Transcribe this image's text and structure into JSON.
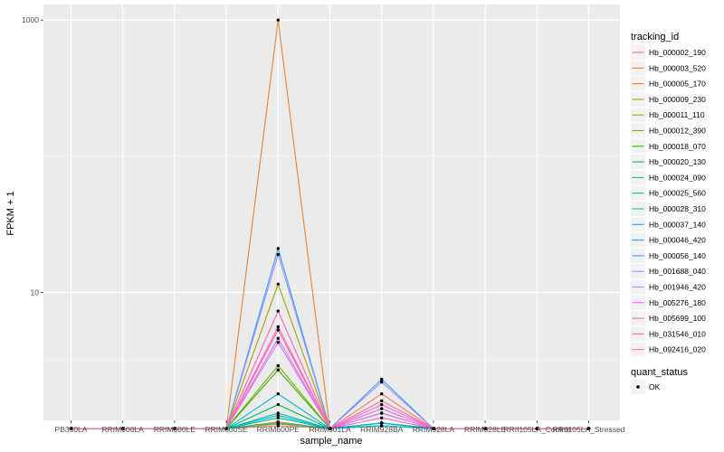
{
  "chart_data": {
    "type": "line",
    "xlabel": "sample_name",
    "ylabel": "FPKM + 1",
    "y_scale": "log10",
    "ylim": [
      1.15,
      1300
    ],
    "y_ticks": [
      10,
      1000
    ],
    "y_tick_labels": [
      "10",
      "1000"
    ],
    "categories": [
      "PB350LA",
      "RRIM600LA",
      "RRIM600LE",
      "RRIM600SE",
      "RRIM600PE",
      "RRIM901LA",
      "RRIM928BA",
      "RRIM928LA",
      "RRIM928LE",
      "RRII105LA_Control",
      "RRII105LA_Stressed"
    ],
    "legend_title": "tracking_id",
    "series": [
      {
        "name": "Hb_000002_190",
        "color": "#F8766D",
        "values": [
          1,
          1,
          1,
          1,
          1.05,
          1,
          1.8,
          1,
          1,
          1,
          1
        ]
      },
      {
        "name": "Hb_000003_520",
        "color": "#EA8331",
        "values": [
          1,
          1,
          1,
          1,
          1000,
          1,
          1.3,
          1,
          1,
          1,
          1
        ]
      },
      {
        "name": "Hb_000005_170",
        "color": "#D89000",
        "values": [
          1,
          1,
          1,
          1,
          1.08,
          1,
          1.1,
          1,
          1,
          1,
          1
        ]
      },
      {
        "name": "Hb_000009_230",
        "color": "#C09B00",
        "values": [
          1,
          1,
          1,
          1,
          1.12,
          1,
          1.05,
          1,
          1,
          1,
          1
        ]
      },
      {
        "name": "Hb_000011_110",
        "color": "#A3A500",
        "values": [
          1,
          1,
          1,
          1,
          11.5,
          1,
          1.1,
          1,
          1,
          1,
          1
        ]
      },
      {
        "name": "Hb_000012_390",
        "color": "#7CAE00",
        "values": [
          1,
          1,
          1,
          1,
          2.9,
          1,
          1.1,
          1,
          1,
          1,
          1
        ]
      },
      {
        "name": "Hb_000018_070",
        "color": "#39B600",
        "values": [
          1,
          1,
          1,
          1,
          2.7,
          1,
          1.05,
          1,
          1,
          1,
          1
        ]
      },
      {
        "name": "Hb_000020_130",
        "color": "#00BB4E",
        "values": [
          1,
          1,
          1,
          1,
          1.5,
          1,
          1.1,
          1,
          1,
          1,
          1
        ]
      },
      {
        "name": "Hb_000024_090",
        "color": "#00BF7D",
        "values": [
          1,
          1,
          1,
          1,
          1.2,
          1,
          1.05,
          1,
          1,
          1,
          1
        ]
      },
      {
        "name": "Hb_000025_560",
        "color": "#00C1A3",
        "values": [
          1,
          1,
          1,
          1,
          1.3,
          1,
          1.1,
          1,
          1,
          1,
          1
        ]
      },
      {
        "name": "Hb_000028_310",
        "color": "#00BFC4",
        "values": [
          1,
          1,
          1,
          1,
          1.1,
          1,
          1.05,
          1,
          1,
          1,
          1
        ]
      },
      {
        "name": "Hb_000037_140",
        "color": "#00BAE0",
        "values": [
          1,
          1,
          1,
          1,
          1.8,
          1,
          1.1,
          1,
          1,
          1,
          1
        ]
      },
      {
        "name": "Hb_000046_420",
        "color": "#00B0F6",
        "values": [
          1,
          1,
          1,
          1,
          1.25,
          1,
          1.1,
          1,
          1,
          1,
          1
        ]
      },
      {
        "name": "Hb_000056_140",
        "color": "#35A2FF",
        "values": [
          1,
          1,
          1,
          1,
          21,
          1,
          2.3,
          1,
          1,
          1,
          1
        ]
      },
      {
        "name": "Hb_001688_040",
        "color": "#9590FF",
        "values": [
          1,
          1,
          1,
          1,
          19,
          1,
          2.2,
          1,
          1,
          1,
          1
        ]
      },
      {
        "name": "Hb_001946_420",
        "color": "#C77CFF",
        "values": [
          1,
          1,
          1,
          1,
          4.3,
          1,
          1.3,
          1,
          1,
          1,
          1
        ]
      },
      {
        "name": "Hb_005276_180",
        "color": "#E76BF3",
        "values": [
          1,
          1,
          1,
          1,
          4.6,
          1,
          1.4,
          1,
          1,
          1,
          1
        ]
      },
      {
        "name": "Hb_005699_100",
        "color": "#FA62DB",
        "values": [
          1,
          1,
          1,
          1,
          5.6,
          1,
          1.5,
          1,
          1,
          1,
          1
        ]
      },
      {
        "name": "Hb_031546_010",
        "color": "#FF62BC",
        "values": [
          1,
          1,
          1,
          1,
          7.3,
          1,
          1.2,
          1,
          1,
          1,
          1
        ]
      },
      {
        "name": "Hb_092416_020",
        "color": "#FF6C91",
        "values": [
          1,
          1,
          1,
          1,
          5.3,
          1,
          1.6,
          1,
          1,
          1,
          1
        ]
      }
    ],
    "point_legend_title": "quant_status",
    "point_legend_label": "OK",
    "point_color": "#000000",
    "panel_color": "#EBEBEB",
    "grid_color": "#FFFFFF",
    "grid": true,
    "legend_position": "right"
  }
}
